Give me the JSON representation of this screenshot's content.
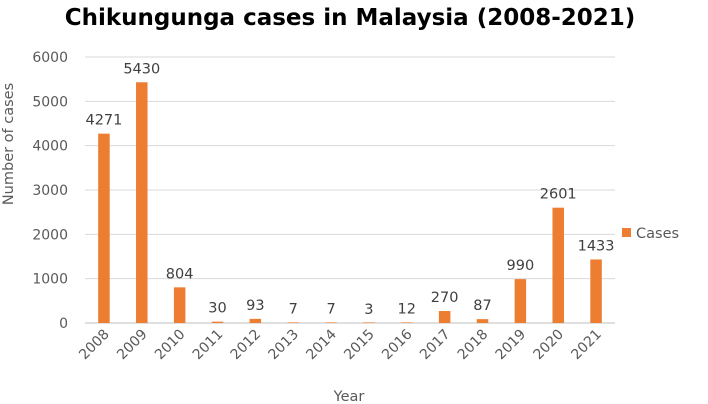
{
  "chart_data": {
    "type": "bar",
    "title": "Chikungunga cases in Malaysia (2008-2021)",
    "xlabel": "Year",
    "ylabel": "Number of cases",
    "categories": [
      "2008",
      "2009",
      "2010",
      "2011",
      "2012",
      "2013",
      "2014",
      "2015",
      "2016",
      "2017",
      "2018",
      "2019",
      "2020",
      "2021"
    ],
    "series": [
      {
        "name": "Cases",
        "values": [
          4271,
          5430,
          804,
          30,
          93,
          7,
          7,
          3,
          12,
          270,
          87,
          990,
          2601,
          1433
        ],
        "color": "#ed7d31"
      }
    ],
    "ylim": [
      0,
      6000
    ],
    "yticks": [
      0,
      1000,
      2000,
      3000,
      4000,
      5000,
      6000
    ],
    "data_labels": [
      "4271",
      "5430",
      "804",
      "30",
      "93",
      "7",
      "7",
      "3",
      "12",
      "270",
      "87",
      "990",
      "2601",
      "1433"
    ],
    "grid": true,
    "legend_position": "right"
  }
}
